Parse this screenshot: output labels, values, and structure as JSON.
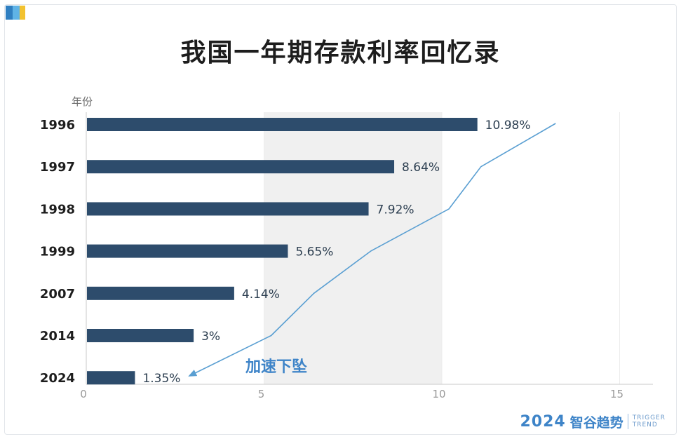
{
  "title": "我国一年期存款利率回忆录",
  "brand": {
    "year": "2024",
    "name": "智谷趋势",
    "en_line1": "TRIGGER",
    "en_line2": "TREND"
  },
  "colors": {
    "bar": "#2d4c6c",
    "band": "#f0f0f0",
    "trend": "#5a9fd2",
    "annotation": "#3e84c8"
  },
  "chart_data": {
    "type": "bar",
    "orientation": "horizontal",
    "title": "我国一年期存款利率回忆录",
    "ylabel": "年份",
    "xlabel": "",
    "categories": [
      "1996",
      "1997",
      "1998",
      "1999",
      "2007",
      "2014",
      "2024"
    ],
    "values": [
      10.98,
      8.64,
      7.92,
      5.65,
      4.14,
      3,
      1.35
    ],
    "data_labels": [
      "10.98%",
      "8.64%",
      "7.92%",
      "5.65%",
      "4.14%",
      "3%",
      "1.35%"
    ],
    "xlim": [
      0,
      16
    ],
    "xticks": [
      0,
      5,
      10,
      15
    ],
    "xtick_labels": [
      "0",
      "5",
      "10",
      "15"
    ],
    "shaded_band": [
      5,
      10
    ],
    "annotation": "加速下坠",
    "trend_line": [
      [
        13.2,
        1996
      ],
      [
        11.1,
        1997
      ],
      [
        10.2,
        1998
      ],
      [
        8.0,
        1999
      ],
      [
        6.4,
        2007
      ],
      [
        5.2,
        2014
      ],
      [
        2.9,
        2024
      ]
    ],
    "grid": false,
    "legend": "none"
  }
}
